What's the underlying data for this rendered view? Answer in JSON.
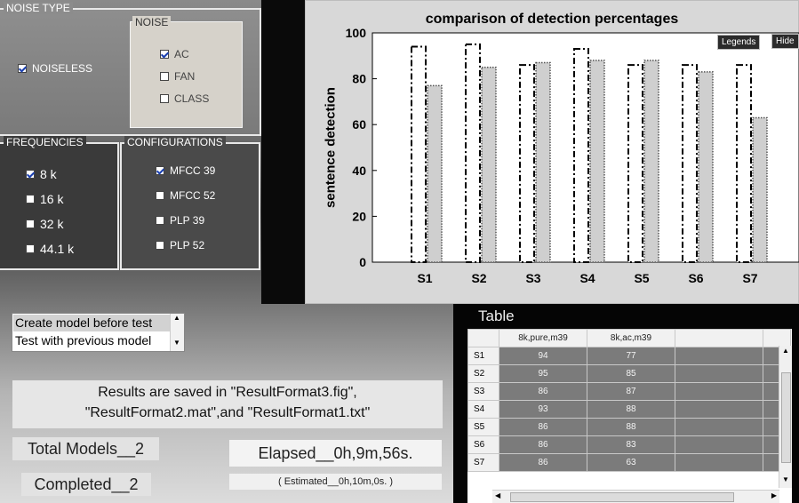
{
  "noise_type": {
    "title": "NOISE TYPE",
    "noiseless_label": "NOISELESS",
    "noise_group": {
      "title": "NOISE",
      "items": [
        {
          "label": "AC",
          "checked": true
        },
        {
          "label": "FAN",
          "checked": false
        },
        {
          "label": "CLASS",
          "checked": false
        }
      ]
    }
  },
  "frequencies": {
    "title": "FREQUENCIES",
    "items": [
      {
        "label": "8 k",
        "checked": true
      },
      {
        "label": "16 k",
        "checked": false
      },
      {
        "label": "32 k",
        "checked": false
      },
      {
        "label": "44.1 k",
        "checked": false
      }
    ]
  },
  "configurations": {
    "title": "CONFIGURATIONS",
    "items": [
      {
        "label": "MFCC 39",
        "checked": true
      },
      {
        "label": "MFCC 52",
        "checked": false
      },
      {
        "label": "PLP 39",
        "checked": false
      },
      {
        "label": "PLP 52",
        "checked": false
      }
    ]
  },
  "chart_data": {
    "type": "bar",
    "title": "comparison of detection percentages",
    "xlabel": "",
    "ylabel": "sentence detection",
    "categories": [
      "S1",
      "S2",
      "S3",
      "S4",
      "S5",
      "S6",
      "S7"
    ],
    "series": [
      {
        "values": [
          94,
          95,
          86,
          93,
          86,
          86,
          86
        ]
      },
      {
        "values": [
          77,
          85,
          87,
          88,
          88,
          83,
          63
        ]
      }
    ],
    "ylim": [
      0,
      100
    ],
    "yticks": [
      0,
      20,
      40,
      60,
      80,
      100
    ],
    "grid": false
  },
  "plot_buttons": {
    "legends": "Legends",
    "hide": "Hide"
  },
  "table": {
    "title": "Table",
    "columns": [
      "8k,pure,m39",
      "8k,ac,m39"
    ],
    "rows": [
      {
        "name": "S1",
        "values": [
          "94",
          "77"
        ]
      },
      {
        "name": "S2",
        "values": [
          "95",
          "85"
        ]
      },
      {
        "name": "S3",
        "values": [
          "86",
          "87"
        ]
      },
      {
        "name": "S4",
        "values": [
          "93",
          "88"
        ]
      },
      {
        "name": "S5",
        "values": [
          "86",
          "88"
        ]
      },
      {
        "name": "S6",
        "values": [
          "86",
          "83"
        ]
      },
      {
        "name": "S7",
        "values": [
          "86",
          "63"
        ]
      }
    ]
  },
  "mode_list": {
    "items": [
      "Create model before test",
      "Test with previous model"
    ],
    "selected_index": 0
  },
  "results_message": {
    "line1": "Results are saved in \"ResultFormat3.fig\",",
    "line2": "\"ResultFormat2.mat\",and \"ResultFormat1.txt\""
  },
  "status": {
    "total_models": "Total Models__2",
    "completed": "Completed__2",
    "elapsed": "Elapsed__0h,9m,56s.",
    "estimated": "( Estimated__0h,10m,0s. )"
  }
}
